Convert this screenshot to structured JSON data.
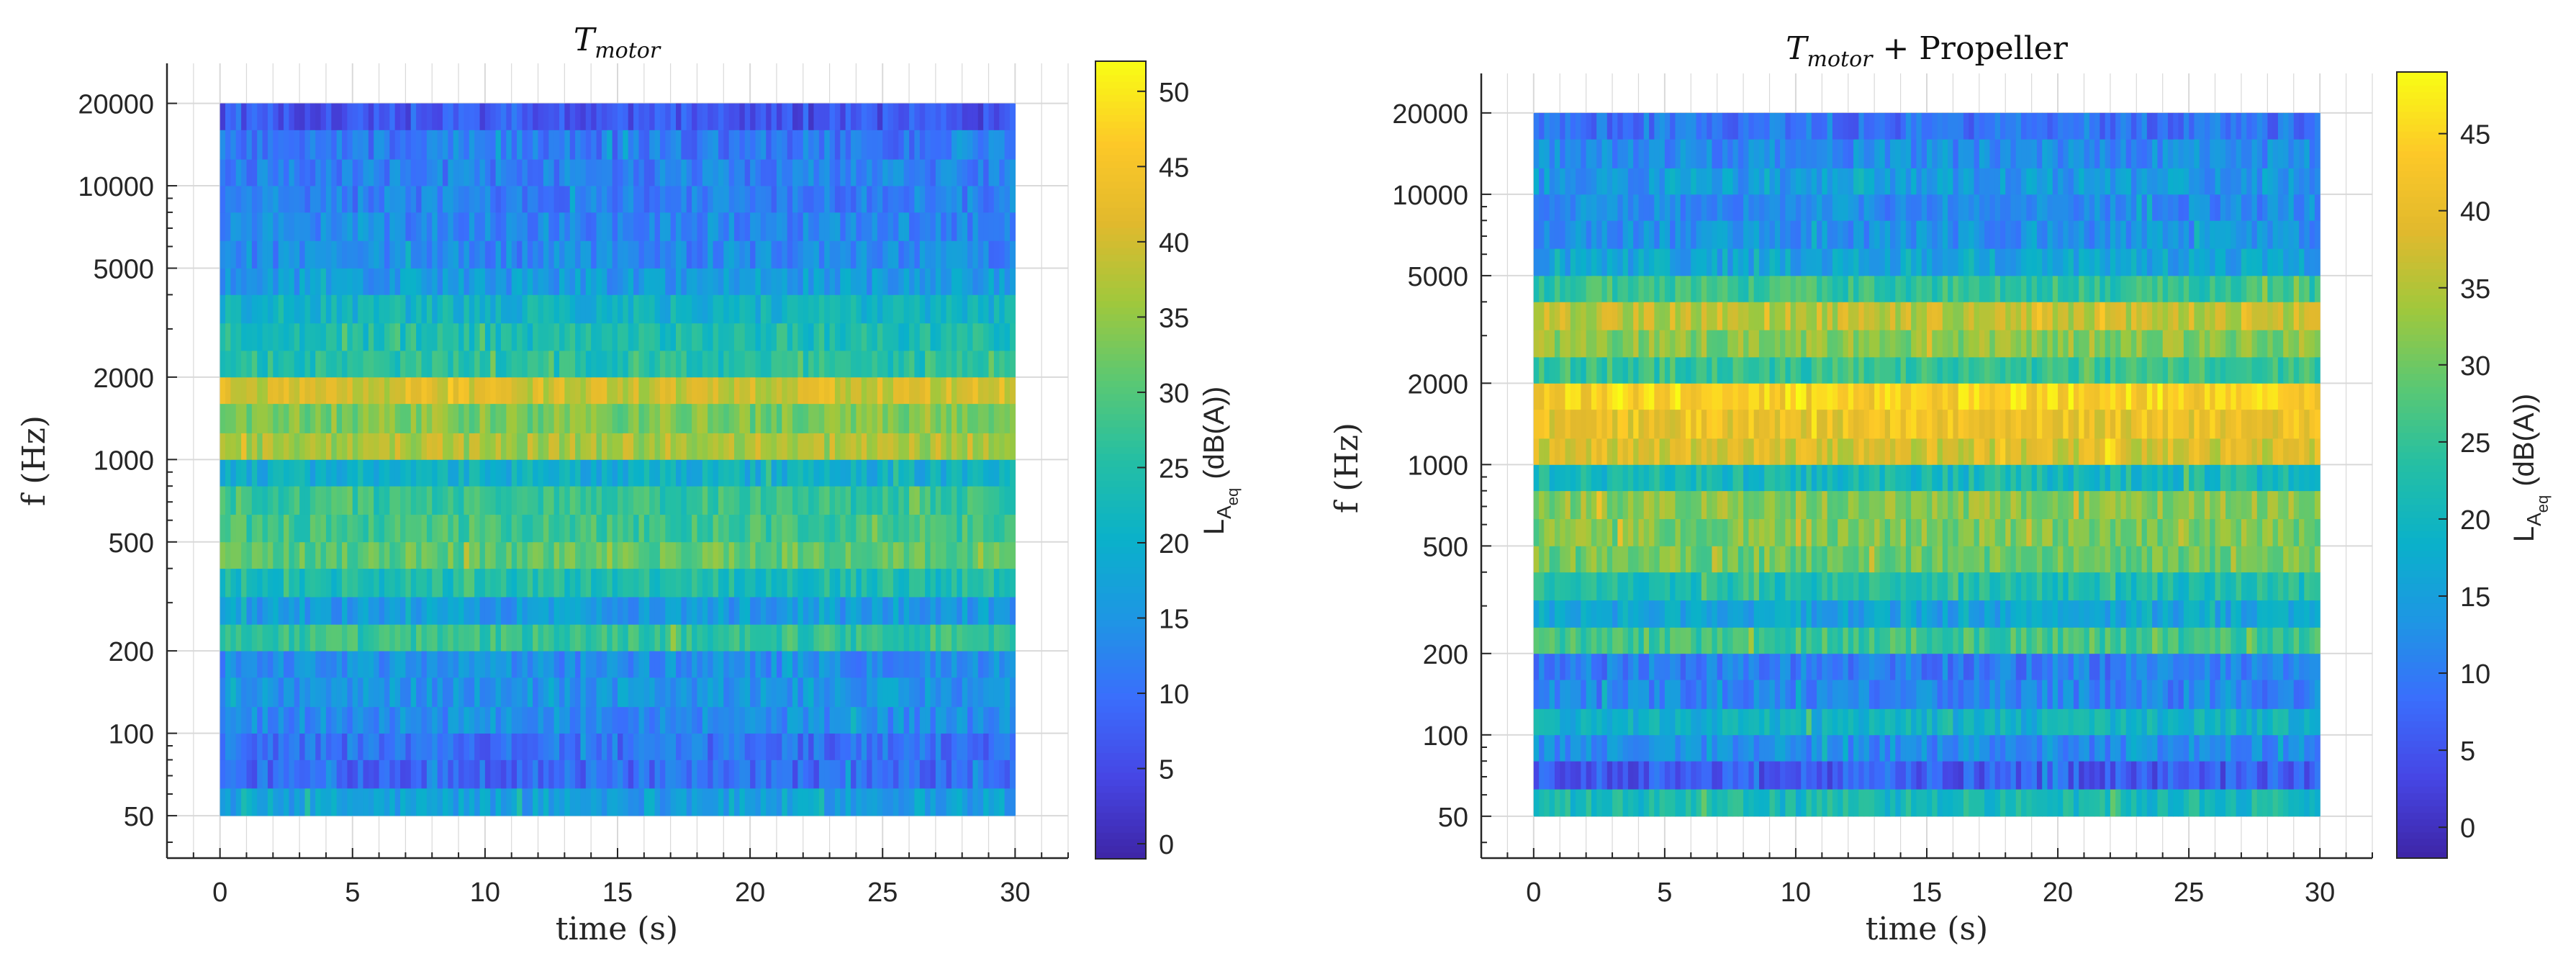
{
  "chart_data": [
    {
      "type": "heatmap",
      "title": "T_motor",
      "title_main": "T",
      "title_sub": "motor",
      "title_suffix": "",
      "xlabel": "time (s)",
      "ylabel": "f (Hz)",
      "xlim": [
        -2,
        32
      ],
      "xticks": [
        0,
        5,
        10,
        15,
        20,
        25,
        30
      ],
      "xtick_labels": [
        "0",
        "5",
        "10",
        "15",
        "20",
        "25",
        "30"
      ],
      "y_scale": "log",
      "ylim": [
        35,
        28000
      ],
      "yticks": [
        50,
        100,
        200,
        500,
        1000,
        2000,
        5000,
        10000,
        20000
      ],
      "ytick_labels": [
        "50",
        "100",
        "200",
        "500",
        "1000",
        "2000",
        "5000",
        "10000",
        "20000"
      ],
      "time_range": [
        0,
        30
      ],
      "n_time_frames": 150,
      "grid": true,
      "colorbar": {
        "label_main": "L",
        "label_sub1": "A",
        "label_sub2": "eq",
        "label_unit": "(dB(A))",
        "ticks": [
          0,
          5,
          10,
          15,
          20,
          25,
          30,
          35,
          40,
          45,
          50
        ],
        "tick_labels": [
          "0",
          "5",
          "10",
          "15",
          "20",
          "25",
          "30",
          "35",
          "40",
          "45",
          "50"
        ],
        "range": [
          -1,
          52
        ]
      },
      "bands": [
        {
          "f_low": 50,
          "f_high": 63,
          "level": 17
        },
        {
          "f_low": 63,
          "f_high": 80,
          "level": 9
        },
        {
          "f_low": 80,
          "f_high": 100,
          "level": 10
        },
        {
          "f_low": 100,
          "f_high": 125,
          "level": 14
        },
        {
          "f_low": 125,
          "f_high": 160,
          "level": 15
        },
        {
          "f_low": 160,
          "f_high": 200,
          "level": 14
        },
        {
          "f_low": 200,
          "f_high": 250,
          "level": 27
        },
        {
          "f_low": 250,
          "f_high": 315,
          "level": 16
        },
        {
          "f_low": 315,
          "f_high": 400,
          "level": 24
        },
        {
          "f_low": 400,
          "f_high": 500,
          "level": 31
        },
        {
          "f_low": 500,
          "f_high": 630,
          "level": 28
        },
        {
          "f_low": 630,
          "f_high": 800,
          "level": 27
        },
        {
          "f_low": 800,
          "f_high": 1000,
          "level": 20
        },
        {
          "f_low": 1000,
          "f_high": 1250,
          "level": 37
        },
        {
          "f_low": 1250,
          "f_high": 1600,
          "level": 33
        },
        {
          "f_low": 1600,
          "f_high": 2000,
          "level": 40
        },
        {
          "f_low": 2000,
          "f_high": 2500,
          "level": 25
        },
        {
          "f_low": 2500,
          "f_high": 3150,
          "level": 24
        },
        {
          "f_low": 3150,
          "f_high": 4000,
          "level": 21
        },
        {
          "f_low": 4000,
          "f_high": 5000,
          "level": 16
        },
        {
          "f_low": 5000,
          "f_high": 6300,
          "level": 13
        },
        {
          "f_low": 6300,
          "f_high": 8000,
          "level": 13
        },
        {
          "f_low": 8000,
          "f_high": 10000,
          "level": 12
        },
        {
          "f_low": 10000,
          "f_high": 12500,
          "level": 12
        },
        {
          "f_low": 12500,
          "f_high": 16000,
          "level": 11
        },
        {
          "f_low": 16000,
          "f_high": 20000,
          "level": 6
        }
      ]
    },
    {
      "type": "heatmap",
      "title": "T_motor + Propeller",
      "title_main": "T",
      "title_sub": "motor",
      "title_suffix": " + Propeller",
      "xlabel": "time (s)",
      "ylabel": "f (Hz)",
      "xlim": [
        -2,
        32
      ],
      "xticks": [
        0,
        5,
        10,
        15,
        20,
        25,
        30
      ],
      "xtick_labels": [
        "0",
        "5",
        "10",
        "15",
        "20",
        "25",
        "30"
      ],
      "y_scale": "log",
      "ylim": [
        35,
        28000
      ],
      "yticks": [
        50,
        100,
        200,
        500,
        1000,
        2000,
        5000,
        10000,
        20000
      ],
      "ytick_labels": [
        "50",
        "100",
        "200",
        "500",
        "1000",
        "2000",
        "5000",
        "10000",
        "20000"
      ],
      "time_range": [
        0,
        30
      ],
      "n_time_frames": 150,
      "grid": true,
      "colorbar": {
        "label_main": "L",
        "label_sub1": "A",
        "label_sub2": "eq",
        "label_unit": "(dB(A))",
        "ticks": [
          0,
          5,
          10,
          15,
          20,
          25,
          30,
          35,
          40,
          45
        ],
        "tick_labels": [
          "0",
          "5",
          "10",
          "15",
          "20",
          "25",
          "30",
          "35",
          "40",
          "45"
        ],
        "range": [
          -2,
          49
        ]
      },
      "bands": [
        {
          "f_low": 50,
          "f_high": 63,
          "level": 21
        },
        {
          "f_low": 63,
          "f_high": 80,
          "level": 6
        },
        {
          "f_low": 80,
          "f_high": 100,
          "level": 12
        },
        {
          "f_low": 100,
          "f_high": 125,
          "level": 19
        },
        {
          "f_low": 125,
          "f_high": 160,
          "level": 11
        },
        {
          "f_low": 160,
          "f_high": 200,
          "level": 10
        },
        {
          "f_low": 200,
          "f_high": 250,
          "level": 26
        },
        {
          "f_low": 250,
          "f_high": 315,
          "level": 16
        },
        {
          "f_low": 315,
          "f_high": 400,
          "level": 22
        },
        {
          "f_low": 400,
          "f_high": 500,
          "level": 30
        },
        {
          "f_low": 500,
          "f_high": 630,
          "level": 31
        },
        {
          "f_low": 630,
          "f_high": 800,
          "level": 32
        },
        {
          "f_low": 800,
          "f_high": 1000,
          "level": 21
        },
        {
          "f_low": 1000,
          "f_high": 1250,
          "level": 38
        },
        {
          "f_low": 1250,
          "f_high": 1600,
          "level": 41
        },
        {
          "f_low": 1600,
          "f_high": 2000,
          "level": 44
        },
        {
          "f_low": 2000,
          "f_high": 2500,
          "level": 25
        },
        {
          "f_low": 2500,
          "f_high": 3150,
          "level": 32
        },
        {
          "f_low": 3150,
          "f_high": 4000,
          "level": 36
        },
        {
          "f_low": 4000,
          "f_high": 5000,
          "level": 25
        },
        {
          "f_low": 5000,
          "f_high": 6300,
          "level": 16
        },
        {
          "f_low": 6300,
          "f_high": 8000,
          "level": 13
        },
        {
          "f_low": 8000,
          "f_high": 10000,
          "level": 12
        },
        {
          "f_low": 10000,
          "f_high": 12500,
          "level": 14
        },
        {
          "f_low": 12500,
          "f_high": 16000,
          "level": 12
        },
        {
          "f_low": 16000,
          "f_high": 20000,
          "level": 9
        }
      ]
    }
  ]
}
